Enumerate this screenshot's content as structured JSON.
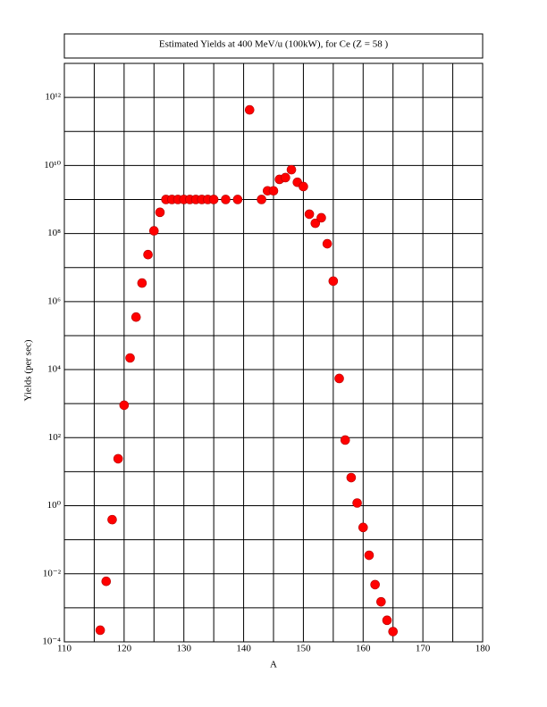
{
  "chart_data": {
    "type": "scatter",
    "title": "Estimated Yields at 400 MeV/u (100kW), for Ce (Z = 58 )",
    "x_label": "A",
    "y_label": "Yields (per sec)",
    "log_y": true,
    "grid": true,
    "color": "#ff0000",
    "xlim": [
      110,
      180
    ],
    "xticks": [
      110,
      120,
      130,
      140,
      150,
      160,
      170,
      180
    ],
    "minor_xticks": [
      115,
      125,
      135,
      145,
      155,
      165,
      175
    ],
    "ylim": [
      0.0001,
      10000000000000.0
    ],
    "yticks": [
      {
        "value": 0.0001,
        "label": "10⁻⁴"
      },
      {
        "value": 0.01,
        "label": "10⁻²"
      },
      {
        "value": 1,
        "label": "10⁰"
      },
      {
        "value": 100,
        "label": "10²"
      },
      {
        "value": 10000,
        "label": "10⁴"
      },
      {
        "value": 1000000,
        "label": "10⁶"
      },
      {
        "value": 100000000,
        "label": "10⁸"
      },
      {
        "value": 10000000000,
        "label": "10¹⁰"
      },
      {
        "value": 1000000000000,
        "label": "10¹²"
      }
    ],
    "minor_yticks": [
      0.001,
      0.1,
      10,
      1000,
      100000,
      10000000,
      1000000000,
      100000000000,
      10000000000000.0
    ],
    "x": [
      116,
      117,
      118,
      119,
      120,
      121,
      122,
      123,
      124,
      125,
      126,
      127,
      128,
      129,
      130,
      131,
      132,
      133,
      134,
      135,
      137,
      139,
      141,
      143,
      144,
      145,
      146,
      147,
      148,
      149,
      150,
      151,
      152,
      153,
      154,
      155,
      156,
      157,
      158,
      159,
      160,
      161,
      162,
      163,
      164,
      165
    ],
    "values": [
      0.00022,
      0.006,
      0.39,
      24,
      900,
      22000,
      350000,
      3500000,
      24000000,
      120000000,
      420000000,
      1000000000,
      1000000000,
      1000000000,
      1000000000,
      1000000000,
      1000000000,
      1000000000,
      1000000000,
      1000000000,
      1000000000,
      1000000000,
      430000000000,
      1000000000,
      1800000000,
      1800000000,
      3900000000,
      4400000000,
      7500000000,
      3200000000,
      2400000000,
      370000000,
      200000000,
      290000000,
      50000000,
      4000000,
      5500,
      85,
      6.7,
      1.2,
      0.23,
      0.035,
      0.0048,
      0.0015,
      0.00043,
      0.0002
    ]
  }
}
